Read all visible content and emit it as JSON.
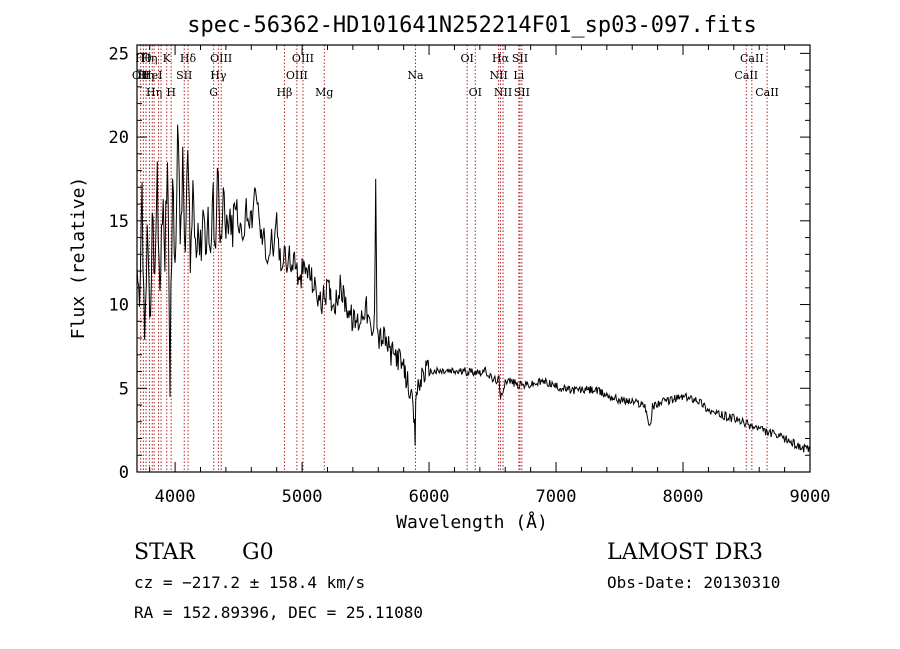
{
  "chart_data": {
    "type": "line",
    "title": "spec-56362-HD101641N252214F01_sp03-097.fits",
    "xlabel": "Wavelength (Å)",
    "ylabel": "Flux (relative)",
    "xlim": [
      3700,
      9000
    ],
    "ylim": [
      0,
      25.5
    ],
    "xticks": [
      4000,
      5000,
      6000,
      7000,
      8000,
      9000
    ],
    "yticks": [
      0,
      5,
      10,
      15,
      20,
      25
    ],
    "grid": false,
    "series": [
      {
        "name": "spectrum",
        "x": [
          3700,
          3720,
          3740,
          3760,
          3780,
          3800,
          3820,
          3840,
          3860,
          3880,
          3900,
          3920,
          3940,
          3960,
          3980,
          4000,
          4020,
          4040,
          4060,
          4080,
          4100,
          4120,
          4140,
          4160,
          4180,
          4200,
          4220,
          4240,
          4260,
          4280,
          4300,
          4320,
          4340,
          4360,
          4380,
          4400,
          4420,
          4440,
          4460,
          4480,
          4500,
          4520,
          4540,
          4560,
          4580,
          4600,
          4620,
          4640,
          4660,
          4680,
          4700,
          4720,
          4740,
          4760,
          4780,
          4800,
          4820,
          4840,
          4860,
          4880,
          4900,
          4920,
          4940,
          4960,
          4980,
          5000,
          5050,
          5100,
          5150,
          5200,
          5250,
          5300,
          5350,
          5400,
          5450,
          5500,
          5550,
          5570,
          5580,
          5590,
          5600,
          5650,
          5700,
          5750,
          5800,
          5850,
          5880,
          5890,
          5900,
          5920,
          5950,
          6000,
          6050,
          6100,
          6150,
          6200,
          6250,
          6300,
          6350,
          6400,
          6450,
          6500,
          6550,
          6563,
          6600,
          6650,
          6700,
          6750,
          6800,
          6850,
          6900,
          6950,
          7000,
          7100,
          7200,
          7300,
          7400,
          7500,
          7600,
          7700,
          7740,
          7760,
          7800,
          7900,
          8000,
          8050,
          8100,
          8150,
          8200,
          8250,
          8300,
          8350,
          8400,
          8450,
          8500,
          8550,
          8600,
          8650,
          8700,
          8750,
          8800,
          8850,
          8900,
          8950,
          9000
        ],
        "y": [
          11,
          9,
          17,
          7,
          14,
          8,
          15,
          12,
          18,
          10,
          16,
          13,
          19,
          6,
          17,
          12,
          21,
          14,
          18,
          13,
          19,
          12,
          17,
          14,
          15,
          13,
          16,
          14,
          15,
          13,
          16,
          14,
          19,
          13,
          16,
          14,
          15,
          14,
          15,
          16,
          14,
          15,
          14,
          16,
          15,
          15,
          16,
          17,
          15,
          14,
          14,
          13,
          13,
          14,
          13,
          15,
          13,
          12,
          14,
          12,
          13,
          12,
          13,
          12,
          11,
          12,
          12,
          11,
          10,
          11,
          10,
          11,
          10,
          9,
          9,
          10,
          8,
          9,
          18,
          9,
          8,
          8,
          7,
          7,
          6,
          5,
          3,
          2,
          5,
          5,
          6,
          6,
          6,
          6,
          6,
          6,
          6,
          6,
          6,
          6,
          6,
          5.5,
          5.5,
          4.3,
          5.5,
          5.4,
          5.2,
          5.2,
          5.2,
          5.3,
          5.4,
          5.3,
          5.1,
          4.9,
          4.9,
          4.9,
          4.6,
          4.3,
          4.2,
          4.0,
          2.6,
          3.9,
          4.1,
          4.3,
          4.5,
          4.4,
          4.4,
          4.1,
          3.7,
          3.5,
          3.4,
          3.3,
          3.2,
          3.0,
          2.9,
          2.7,
          2.6,
          2.4,
          2.3,
          2.1,
          2.0,
          1.8,
          1.6,
          1.4,
          1.3
        ]
      }
    ],
    "lines": [
      {
        "x": 3729,
        "label": "OII",
        "row": 2
      },
      {
        "x": 3750,
        "label": "Hθ",
        "row": 1
      },
      {
        "x": 3771,
        "label": "Hη",
        "row": 2
      },
      {
        "x": 3798,
        "label": "Hη",
        "row": 1
      },
      {
        "x": 3820,
        "label": "HeI",
        "row": 2
      },
      {
        "x": 3835,
        "label": "Hη",
        "row": 3
      },
      {
        "x": 3869,
        "label": "",
        "row": 0
      },
      {
        "x": 3889,
        "label": "",
        "row": 0
      },
      {
        "x": 3934,
        "label": "K",
        "row": 1
      },
      {
        "x": 3969,
        "label": "H",
        "row": 3
      },
      {
        "x": 4072,
        "label": "SII",
        "row": 2
      },
      {
        "x": 4102,
        "label": "Hδ",
        "row": 1
      },
      {
        "x": 4304,
        "label": "G",
        "row": 3
      },
      {
        "x": 4341,
        "label": "Hγ",
        "row": 2
      },
      {
        "x": 4363,
        "label": "OIII",
        "row": 1
      },
      {
        "x": 4861,
        "label": "Hβ",
        "row": 3
      },
      {
        "x": 4959,
        "label": "OIII",
        "row": 2
      },
      {
        "x": 5007,
        "label": "OIII",
        "row": 1
      },
      {
        "x": 5175,
        "label": "Mg",
        "row": 3
      },
      {
        "x": 5893,
        "label": "Na",
        "row": 2
      },
      {
        "x": 6300,
        "label": "OI",
        "row": 1
      },
      {
        "x": 6364,
        "label": "OI",
        "row": 3
      },
      {
        "x": 6548,
        "label": "NII",
        "row": 2
      },
      {
        "x": 6563,
        "label": "Hα",
        "row": 1
      },
      {
        "x": 6583,
        "label": "NII",
        "row": 3
      },
      {
        "x": 6707,
        "label": "Li",
        "row": 2
      },
      {
        "x": 6716,
        "label": "SII",
        "row": 1
      },
      {
        "x": 6731,
        "label": "SII",
        "row": 3
      },
      {
        "x": 8498,
        "label": "CaII",
        "row": 2
      },
      {
        "x": 8542,
        "label": "CaII",
        "row": 1
      },
      {
        "x": 8662,
        "label": "CaII",
        "row": 3
      }
    ]
  },
  "info": {
    "class": "STAR",
    "subclass": "G0",
    "survey": "LAMOST DR3",
    "cz": "cz = −217.2 ± 158.4 km/s",
    "obsdate": "Obs-Date: 20130310",
    "radec": "RA = 152.89396, DEC =  25.11080"
  },
  "colors": {
    "spectrum": "#000000",
    "lines": "#b22222",
    "axes": "#000000"
  }
}
